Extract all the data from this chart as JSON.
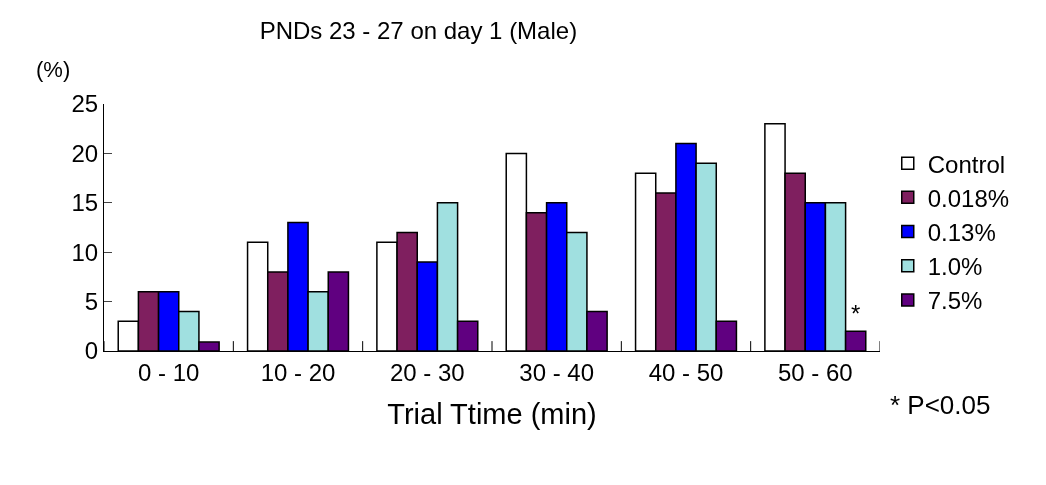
{
  "chart_data": {
    "type": "bar",
    "title": "PNDs 23 - 27 on day 1 (Male)",
    "xlabel": "Trial Ttime (min)",
    "ylabel": "(%)",
    "categories": [
      "0 - 10",
      "10 - 20",
      "20 - 30",
      "30 - 40",
      "40 - 50",
      "50 - 60"
    ],
    "series": [
      {
        "name": "Control",
        "color": "#ffffff",
        "values": [
          3,
          11,
          11,
          20,
          18,
          23
        ]
      },
      {
        "name": "0.018%",
        "color": "#7f1f5f",
        "values": [
          6,
          8,
          12,
          14,
          16,
          18
        ]
      },
      {
        "name": "0.13%",
        "color": "#0000ff",
        "values": [
          6,
          13,
          9,
          15,
          21,
          15
        ]
      },
      {
        "name": "1.0%",
        "color": "#a0e0e0",
        "values": [
          4,
          6,
          15,
          12,
          19,
          15
        ]
      },
      {
        "name": "7.5%",
        "color": "#600080",
        "values": [
          0.9,
          8,
          3,
          4,
          3,
          2
        ]
      }
    ],
    "ylim": [
      0,
      25
    ],
    "yticks": [
      0,
      5,
      10,
      15,
      20,
      25
    ],
    "legend": "right",
    "annotations": [
      "*",
      "* P<0.05"
    ]
  }
}
